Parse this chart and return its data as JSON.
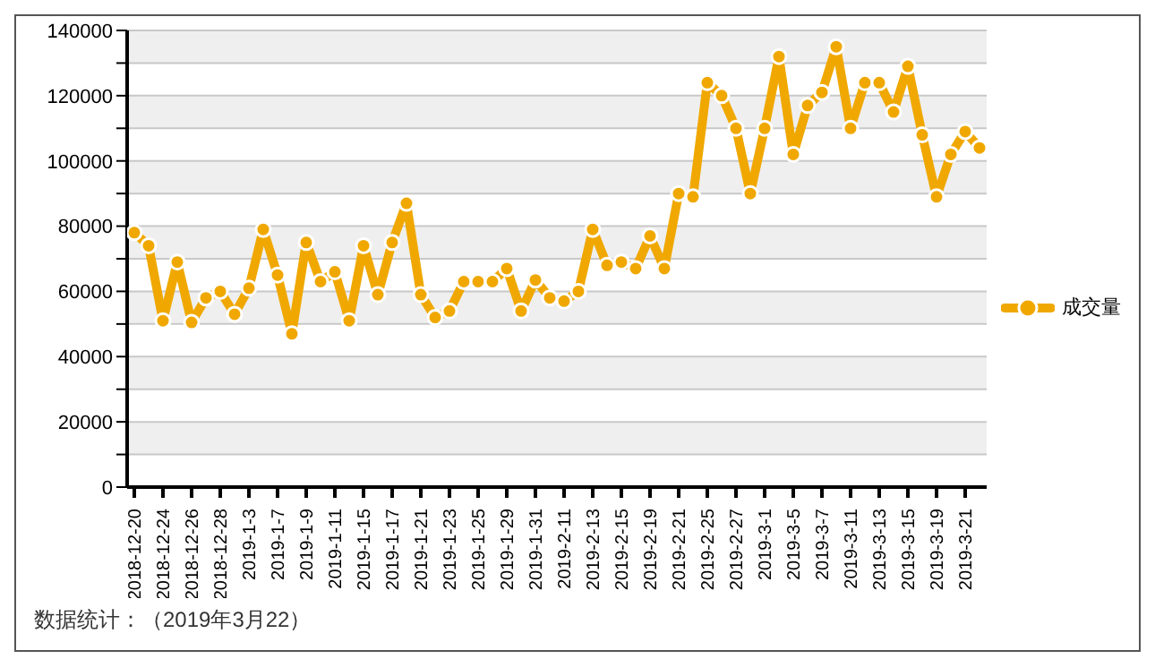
{
  "chart_data": {
    "type": "line",
    "categories": [
      "2018-12-20",
      null,
      "2018-12-24",
      null,
      "2018-12-26",
      null,
      "2018-12-28",
      null,
      "2019-1-3",
      null,
      "2019-1-7",
      null,
      "2019-1-9",
      null,
      "2019-1-11",
      null,
      "2019-1-15",
      null,
      "2019-1-17",
      null,
      "2019-1-21",
      null,
      "2019-1-23",
      null,
      "2019-1-25",
      null,
      "2019-1-29",
      null,
      "2019-1-31",
      null,
      "2019-2-11",
      null,
      "2019-2-13",
      null,
      "2019-2-15",
      null,
      "2019-2-19",
      null,
      "2019-2-21",
      null,
      "2019-2-25",
      null,
      "2019-2-27",
      null,
      "2019-3-1",
      null,
      "2019-3-5",
      null,
      "2019-3-7",
      null,
      "2019-3-11",
      null,
      "2019-3-13",
      null,
      "2019-3-15",
      null,
      "2019-3-19",
      null,
      "2019-3-21",
      null
    ],
    "series": [
      {
        "name": "成交量",
        "color": "#f0a800",
        "values": [
          78000,
          74000,
          51000,
          69000,
          50500,
          58000,
          60000,
          53000,
          61000,
          79000,
          65000,
          47000,
          75000,
          63000,
          66000,
          51000,
          74000,
          59000,
          75000,
          87000,
          59000,
          52000,
          54000,
          63000,
          63000,
          63000,
          67000,
          54000,
          63500,
          58000,
          57000,
          60000,
          79000,
          68000,
          69000,
          67000,
          77000,
          67000,
          90000,
          89000,
          124000,
          120000,
          110000,
          90000,
          110000,
          132000,
          102000,
          117000,
          121000,
          135000,
          110000,
          124000,
          124000,
          115000,
          129000,
          108000,
          89000,
          102000,
          109000,
          104000
        ]
      }
    ],
    "ylim": [
      0,
      140000
    ],
    "yticks": [
      0,
      {
        "value": 10000,
        "label": null
      },
      20000,
      {
        "value": 30000,
        "label": null
      },
      40000,
      {
        "value": 50000,
        "label": null
      },
      60000,
      {
        "value": 70000,
        "label": null
      },
      80000,
      {
        "value": 90000,
        "label": null
      },
      100000,
      {
        "value": 110000,
        "label": null
      },
      120000,
      {
        "value": 130000,
        "label": null
      },
      140000
    ],
    "grid": "y",
    "legend": "right",
    "marker": "circle",
    "line_style": "solid",
    "annotations": [
      "数据统计：（2019年3月22）"
    ]
  }
}
